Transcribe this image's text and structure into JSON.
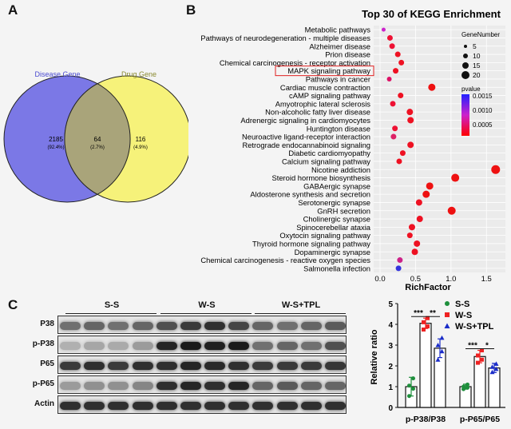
{
  "panels": {
    "a": "A",
    "b": "B",
    "c": "C"
  },
  "venn": {
    "disease_label": "Disease Gene",
    "drug_label": "Drug Gene",
    "left_count": "2185",
    "left_pct": "(92.4%)",
    "mid_count": "64",
    "mid_pct": "(2.7%)",
    "right_count": "116",
    "right_pct": "(4.9%)",
    "colors": {
      "left": "#7b78e6",
      "right": "#f6f27a",
      "overlap": "#a9a47a"
    }
  },
  "chart_data": [
    {
      "type": "scatter",
      "title": "Top 30 of KEGG Enrichment",
      "xlabel": "RichFactor",
      "ylabel": "",
      "xlim": [
        0.0,
        1.7
      ],
      "xticks": [
        "0.0",
        "0.5",
        "1.0",
        "1.5"
      ],
      "grid": true,
      "highlighted": "MAPK signaling pathway",
      "size_legend": {
        "title": "GeneNumber",
        "values": [
          "5",
          "10",
          "15",
          "20"
        ]
      },
      "color_legend": {
        "title": "pvalue",
        "ticks": [
          "0.0015",
          "0.0010",
          "0.0005"
        ],
        "low": "#ff0000",
        "high": "#2222ff"
      },
      "pathways": [
        {
          "name": "Metabolic pathways",
          "x": 0.05,
          "size": 4,
          "color": "#cc22cc"
        },
        {
          "name": "Pathways of neurodegeneration - multiple diseases",
          "x": 0.14,
          "size": 6,
          "color": "#ee1133"
        },
        {
          "name": "Alzheimer disease",
          "x": 0.17,
          "size": 6,
          "color": "#ee1133"
        },
        {
          "name": "Prion disease",
          "x": 0.25,
          "size": 6,
          "color": "#ee1122"
        },
        {
          "name": "Chemical carcinogenesis - receptor activation",
          "x": 0.3,
          "size": 6,
          "color": "#ee1122"
        },
        {
          "name": "MAPK signaling pathway",
          "x": 0.22,
          "size": 6,
          "color": "#ee1122"
        },
        {
          "name": "Pathways in cancer",
          "x": 0.13,
          "size": 5,
          "color": "#dd1166"
        },
        {
          "name": "Cardiac muscle contraction",
          "x": 0.73,
          "size": 8,
          "color": "#ee1111"
        },
        {
          "name": "cAMP signaling pathway",
          "x": 0.29,
          "size": 6,
          "color": "#ee1122"
        },
        {
          "name": "Amyotrophic lateral sclerosis",
          "x": 0.18,
          "size": 6,
          "color": "#ee1133"
        },
        {
          "name": "Non-alcoholic fatty liver disease",
          "x": 0.42,
          "size": 7,
          "color": "#ee1122"
        },
        {
          "name": "Adrenergic signaling in cardiomyocytes",
          "x": 0.43,
          "size": 7,
          "color": "#ee1122"
        },
        {
          "name": "Huntington disease",
          "x": 0.21,
          "size": 6,
          "color": "#ee1133"
        },
        {
          "name": "Neuroactive ligand-receptor interaction",
          "x": 0.19,
          "size": 6,
          "color": "#dd2266"
        },
        {
          "name": "Retrograde endocannabinoid signaling",
          "x": 0.43,
          "size": 7,
          "color": "#ee1122"
        },
        {
          "name": "Diabetic cardiomyopathy",
          "x": 0.32,
          "size": 6,
          "color": "#ee1122"
        },
        {
          "name": "Calcium signaling pathway",
          "x": 0.27,
          "size": 6,
          "color": "#ee1122"
        },
        {
          "name": "Nicotine addiction",
          "x": 1.63,
          "size": 10,
          "color": "#ee1111"
        },
        {
          "name": "Steroid hormone biosynthesis",
          "x": 1.06,
          "size": 9,
          "color": "#ee1111"
        },
        {
          "name": "GABAergic synapse",
          "x": 0.7,
          "size": 8,
          "color": "#ee1111"
        },
        {
          "name": "Aldosterone synthesis and secretion",
          "x": 0.65,
          "size": 8,
          "color": "#ee1111"
        },
        {
          "name": "Serotonergic synapse",
          "x": 0.55,
          "size": 7,
          "color": "#ee1122"
        },
        {
          "name": "GnRH secretion",
          "x": 1.01,
          "size": 9,
          "color": "#ee1111"
        },
        {
          "name": "Cholinergic synapse",
          "x": 0.56,
          "size": 7,
          "color": "#ee1122"
        },
        {
          "name": "Spinocerebellar ataxia",
          "x": 0.45,
          "size": 7,
          "color": "#ee1122"
        },
        {
          "name": "Oxytocin signaling pathway",
          "x": 0.42,
          "size": 6,
          "color": "#ee1122"
        },
        {
          "name": "Thyroid hormone signaling pathway",
          "x": 0.52,
          "size": 7,
          "color": "#ee1122"
        },
        {
          "name": "Dopaminergic synapse",
          "x": 0.49,
          "size": 7,
          "color": "#ee1122"
        },
        {
          "name": "Chemical carcinogenesis - reactive oxygen species",
          "x": 0.28,
          "size": 6,
          "color": "#cc2288"
        },
        {
          "name": "Salmonella infection",
          "x": 0.26,
          "size": 6,
          "color": "#3333dd"
        }
      ]
    },
    {
      "type": "bar",
      "ylabel": "Relative ratio",
      "ylim": [
        0,
        5
      ],
      "yticks": [
        "0",
        "1",
        "2",
        "3",
        "4",
        "5"
      ],
      "categories": [
        "p-P38/P38",
        "p-P65/P65"
      ],
      "series": [
        {
          "name": "S-S",
          "values": [
            1.0,
            1.0
          ],
          "errors": [
            0.45,
            0.12
          ],
          "color": "#1e8f3c",
          "marker": "●",
          "points": [
            [
              0.55,
              0.9,
              1.05,
              1.4
            ],
            [
              0.88,
              0.95,
              1.0,
              1.1
            ]
          ]
        },
        {
          "name": "W-S",
          "values": [
            4.05,
            2.45
          ],
          "errors": [
            0.25,
            0.3
          ],
          "color": "#ee2222",
          "marker": "■",
          "points": [
            [
              3.75,
              3.9,
              4.1,
              4.3
            ],
            [
              2.15,
              2.3,
              2.5,
              2.75
            ]
          ]
        },
        {
          "name": "W-S+TPL",
          "values": [
            2.85,
            1.9
          ],
          "errors": [
            0.45,
            0.22
          ],
          "color": "#1a2cc8",
          "marker": "▲",
          "points": [
            [
              2.3,
              2.7,
              3.0,
              3.35
            ],
            [
              1.7,
              1.85,
              1.95,
              2.1
            ]
          ]
        }
      ],
      "significance": [
        {
          "category": "p-P38/P38",
          "between": [
            "S-S",
            "W-S"
          ],
          "label": "***"
        },
        {
          "category": "p-P38/P38",
          "between": [
            "W-S",
            "W-S+TPL"
          ],
          "label": "**"
        },
        {
          "category": "p-P65/P65",
          "between": [
            "S-S",
            "W-S"
          ],
          "label": "***"
        },
        {
          "category": "p-P65/P65",
          "between": [
            "W-S",
            "W-S+TPL"
          ],
          "label": "*"
        }
      ]
    }
  ],
  "blot": {
    "groups": [
      "S-S",
      "W-S",
      "W-S+TPL"
    ],
    "rows": [
      {
        "label": "P38",
        "intensity": [
          0.55,
          0.6,
          0.55,
          0.6,
          0.7,
          0.8,
          0.85,
          0.75,
          0.6,
          0.55,
          0.6,
          0.65
        ]
      },
      {
        "label": "p-P38",
        "intensity": [
          0.25,
          0.3,
          0.28,
          0.35,
          0.9,
          0.95,
          0.92,
          0.95,
          0.55,
          0.6,
          0.55,
          0.7
        ]
      },
      {
        "label": "P65",
        "intensity": [
          0.8,
          0.85,
          0.8,
          0.85,
          0.85,
          0.9,
          0.88,
          0.85,
          0.8,
          0.8,
          0.8,
          0.82
        ]
      },
      {
        "label": "p-P65",
        "intensity": [
          0.35,
          0.4,
          0.4,
          0.45,
          0.85,
          0.9,
          0.85,
          0.9,
          0.6,
          0.65,
          0.6,
          0.6
        ]
      },
      {
        "label": "Actin",
        "intensity": [
          0.85,
          0.85,
          0.85,
          0.85,
          0.85,
          0.85,
          0.85,
          0.85,
          0.85,
          0.85,
          0.85,
          0.85
        ]
      }
    ]
  }
}
